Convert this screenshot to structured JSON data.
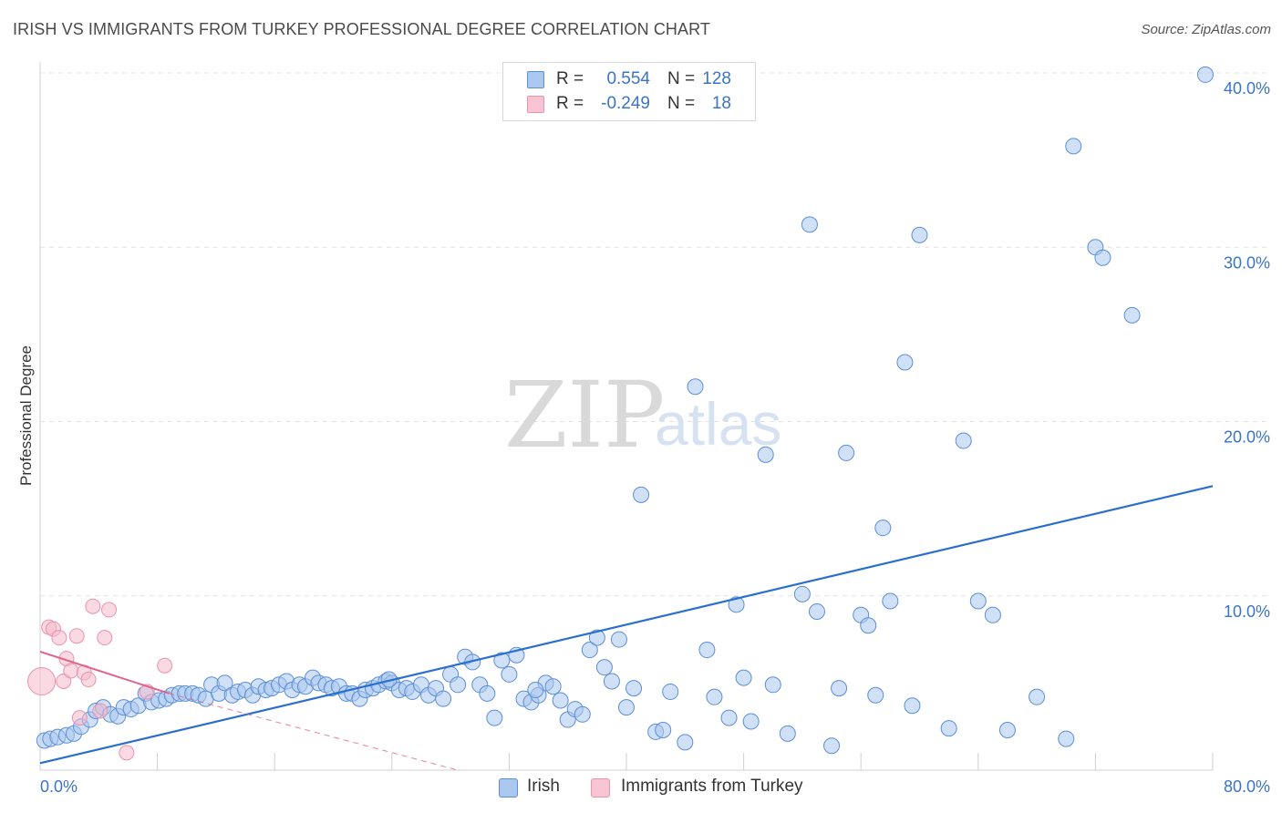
{
  "header": {
    "title": "IRISH VS IMMIGRANTS FROM TURKEY PROFESSIONAL DEGREE CORRELATION CHART",
    "source": "Source: ZipAtlas.com"
  },
  "watermark": {
    "zip": "ZIP",
    "atlas": "atlas"
  },
  "legend": {
    "rows": [
      {
        "r_label": "R =",
        "r_value": "0.554",
        "n_label": "N =",
        "n_value": "128"
      },
      {
        "r_label": "R =",
        "r_value": "-0.249",
        "n_label": "N =",
        "n_value": "18"
      }
    ]
  },
  "bottom_legend": {
    "irish": "Irish",
    "turkey": "Immigrants from Turkey"
  },
  "colors": {
    "irish_fill": "#a9c7ef",
    "irish_stroke": "#5b8fd6",
    "irish_line": "#2a6fd0",
    "turkey_fill": "#f6b9cb",
    "turkey_stroke": "#e993ae",
    "turkey_line": "#e0628c",
    "tick": "#3a74c9",
    "grid": "#e2e2e2"
  },
  "chart_data": {
    "type": "scatter",
    "title": "IRISH VS IMMIGRANTS FROM TURKEY PROFESSIONAL DEGREE CORRELATION CHART",
    "xlabel": "",
    "ylabel": "Professional Degree",
    "xlim": [
      0,
      80
    ],
    "ylim": [
      0,
      40.0
    ],
    "x_tick_labels": [
      "0.0%",
      "80.0%"
    ],
    "y_ticks": [
      10,
      20,
      30,
      40
    ],
    "y_tick_labels": [
      "10.0%",
      "20.0%",
      "30.0%",
      "40.0%"
    ],
    "grid": true,
    "series": [
      {
        "name": "Irish",
        "r": 0.554,
        "n": 128,
        "trend": {
          "x": [
            0,
            80
          ],
          "y": [
            0.4,
            16.3
          ]
        },
        "points": [
          [
            0.3,
            1.7
          ],
          [
            0.7,
            1.8
          ],
          [
            1.2,
            1.9
          ],
          [
            1.8,
            2.0
          ],
          [
            2.3,
            2.1
          ],
          [
            2.8,
            2.5
          ],
          [
            3.4,
            2.9
          ],
          [
            3.8,
            3.4
          ],
          [
            4.3,
            3.6
          ],
          [
            4.8,
            3.2
          ],
          [
            5.3,
            3.1
          ],
          [
            5.7,
            3.6
          ],
          [
            6.2,
            3.5
          ],
          [
            6.7,
            3.7
          ],
          [
            7.2,
            4.4
          ],
          [
            7.6,
            3.9
          ],
          [
            8.1,
            4.0
          ],
          [
            8.6,
            4.1
          ],
          [
            9.0,
            4.3
          ],
          [
            9.5,
            4.4
          ],
          [
            9.9,
            4.4
          ],
          [
            10.4,
            4.4
          ],
          [
            10.8,
            4.3
          ],
          [
            11.3,
            4.1
          ],
          [
            11.7,
            4.9
          ],
          [
            12.2,
            4.4
          ],
          [
            12.6,
            5.0
          ],
          [
            13.1,
            4.3
          ],
          [
            13.5,
            4.5
          ],
          [
            14.0,
            4.6
          ],
          [
            14.5,
            4.3
          ],
          [
            14.9,
            4.8
          ],
          [
            15.4,
            4.6
          ],
          [
            15.8,
            4.7
          ],
          [
            16.3,
            4.9
          ],
          [
            16.8,
            5.1
          ],
          [
            17.2,
            4.6
          ],
          [
            17.7,
            4.9
          ],
          [
            18.1,
            4.8
          ],
          [
            18.6,
            5.3
          ],
          [
            19.0,
            5.0
          ],
          [
            19.5,
            4.9
          ],
          [
            19.9,
            4.7
          ],
          [
            20.4,
            4.8
          ],
          [
            20.9,
            4.4
          ],
          [
            21.3,
            4.4
          ],
          [
            21.8,
            4.1
          ],
          [
            22.2,
            4.6
          ],
          [
            22.7,
            4.7
          ],
          [
            23.1,
            4.9
          ],
          [
            23.6,
            5.1
          ],
          [
            24.0,
            5.0
          ],
          [
            24.5,
            4.6
          ],
          [
            25.0,
            4.7
          ],
          [
            25.4,
            4.5
          ],
          [
            26.0,
            4.9
          ],
          [
            26.5,
            4.3
          ],
          [
            27.0,
            4.7
          ],
          [
            27.5,
            4.1
          ],
          [
            28.0,
            5.5
          ],
          [
            28.5,
            4.9
          ],
          [
            29.0,
            6.5
          ],
          [
            29.5,
            6.2
          ],
          [
            30.0,
            4.9
          ],
          [
            30.5,
            4.4
          ],
          [
            31.0,
            3.0
          ],
          [
            31.5,
            6.3
          ],
          [
            32.0,
            5.5
          ],
          [
            32.5,
            6.6
          ],
          [
            33.0,
            4.1
          ],
          [
            33.5,
            3.9
          ],
          [
            34.0,
            4.3
          ],
          [
            34.5,
            5.0
          ],
          [
            35.0,
            4.8
          ],
          [
            35.5,
            4.0
          ],
          [
            36.0,
            2.9
          ],
          [
            36.5,
            3.5
          ],
          [
            37.0,
            3.2
          ],
          [
            37.5,
            6.9
          ],
          [
            38.0,
            7.6
          ],
          [
            38.5,
            5.9
          ],
          [
            39.0,
            5.1
          ],
          [
            39.5,
            7.5
          ],
          [
            40.0,
            3.6
          ],
          [
            40.5,
            4.7
          ],
          [
            41.0,
            15.8
          ],
          [
            42.0,
            2.2
          ],
          [
            42.5,
            2.3
          ],
          [
            43.0,
            4.5
          ],
          [
            44.0,
            1.6
          ],
          [
            44.7,
            22.0
          ],
          [
            45.5,
            6.9
          ],
          [
            46.0,
            4.2
          ],
          [
            47.0,
            3.0
          ],
          [
            47.5,
            9.5
          ],
          [
            48.0,
            5.3
          ],
          [
            48.5,
            2.8
          ],
          [
            49.5,
            18.1
          ],
          [
            50.0,
            4.9
          ],
          [
            51.0,
            2.1
          ],
          [
            52.0,
            10.1
          ],
          [
            52.5,
            31.3
          ],
          [
            53.0,
            9.1
          ],
          [
            54.0,
            1.4
          ],
          [
            54.5,
            4.7
          ],
          [
            55.0,
            18.2
          ],
          [
            56.0,
            8.9
          ],
          [
            56.5,
            8.3
          ],
          [
            57.0,
            4.3
          ],
          [
            57.5,
            13.9
          ],
          [
            58.0,
            9.7
          ],
          [
            59.0,
            23.4
          ],
          [
            59.5,
            3.7
          ],
          [
            60.0,
            30.7
          ],
          [
            62.0,
            2.4
          ],
          [
            63.0,
            18.9
          ],
          [
            64.0,
            9.7
          ],
          [
            65.0,
            8.9
          ],
          [
            66.0,
            2.3
          ],
          [
            68.0,
            4.2
          ],
          [
            70.0,
            1.8
          ],
          [
            70.5,
            35.8
          ],
          [
            72.0,
            30.0
          ],
          [
            72.5,
            29.4
          ],
          [
            74.5,
            26.1
          ],
          [
            79.5,
            39.9
          ],
          [
            23.8,
            5.2
          ],
          [
            33.8,
            4.6
          ]
        ]
      },
      {
        "name": "Immigrants from Turkey",
        "r": -0.249,
        "n": 18,
        "trend": {
          "x": [
            0,
            8.8
          ],
          "y": [
            6.8,
            4.4
          ]
        },
        "trend_extended": {
          "x": [
            8.8,
            28.5
          ],
          "y": [
            4.4,
            0.0
          ]
        },
        "points": [
          [
            0.1,
            5.1
          ],
          [
            0.6,
            8.2
          ],
          [
            0.9,
            8.1
          ],
          [
            1.3,
            7.6
          ],
          [
            1.6,
            5.1
          ],
          [
            1.8,
            6.4
          ],
          [
            2.1,
            5.7
          ],
          [
            2.5,
            7.7
          ],
          [
            2.7,
            3.0
          ],
          [
            3.0,
            5.6
          ],
          [
            3.3,
            5.2
          ],
          [
            3.6,
            9.4
          ],
          [
            4.1,
            3.4
          ],
          [
            4.4,
            7.6
          ],
          [
            4.7,
            9.2
          ],
          [
            5.9,
            1.0
          ],
          [
            7.3,
            4.5
          ],
          [
            8.5,
            6.0
          ]
        ]
      }
    ]
  }
}
